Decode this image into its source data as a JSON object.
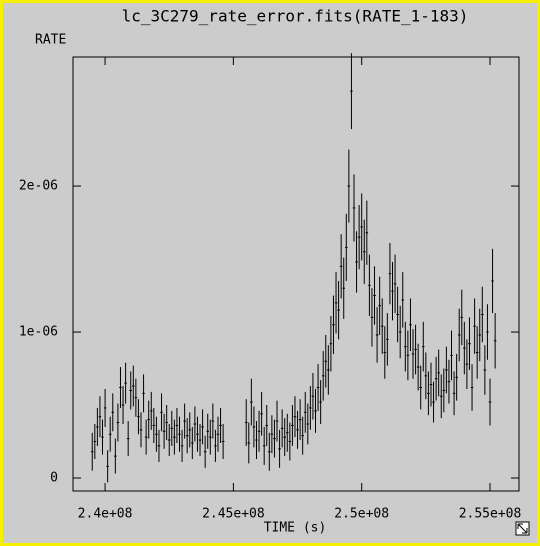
{
  "chart_data": {
    "type": "errorbar",
    "title": "lc_3C279_rate_error.fits(RATE_1-183)",
    "ylabel": "RATE",
    "xlabel": "TIME (s)",
    "color": "#000000",
    "xlim": [
      238750000,
      256130000
    ],
    "ylim": [
      -8.9e-08,
      2.884e-06
    ],
    "xticks": [
      {
        "value": 240000000,
        "label": "2.4e+08"
      },
      {
        "value": 245000000,
        "label": "2.45e+08"
      },
      {
        "value": 250000000,
        "label": "2.5e+08"
      },
      {
        "value": 255000000,
        "label": "2.55e+08"
      }
    ],
    "yticks": [
      0,
      {
        "value": 1e-06,
        "label": "1e-06"
      },
      {
        "value": 2e-06,
        "label": "2e-06"
      }
    ],
    "x_error": 50000,
    "x": [
      239500000,
      239600000,
      239700000,
      239800000,
      239900000,
      240000000,
      240100000,
      240200000,
      240300000,
      240400000,
      240500000,
      240600000,
      240700000,
      240800000,
      240900000,
      241000000,
      241100000,
      241200000,
      241300000,
      241400000,
      241500000,
      241600000,
      241700000,
      241800000,
      241900000,
      242000000,
      242100000,
      242200000,
      242300000,
      242400000,
      242500000,
      242600000,
      242700000,
      242800000,
      242900000,
      243000000,
      243100000,
      243200000,
      243300000,
      243400000,
      243500000,
      243600000,
      243700000,
      243800000,
      243900000,
      244000000,
      244100000,
      244200000,
      244300000,
      244400000,
      244500000,
      244600000,
      245500000,
      245600000,
      245700000,
      245800000,
      245900000,
      246000000,
      246100000,
      246200000,
      246300000,
      246400000,
      246500000,
      246600000,
      246700000,
      246800000,
      246900000,
      247000000,
      247100000,
      247200000,
      247300000,
      247400000,
      247500000,
      247600000,
      247700000,
      247800000,
      247900000,
      248000000,
      248100000,
      248200000,
      248300000,
      248400000,
      248500000,
      248600000,
      248700000,
      248800000,
      248900000,
      249000000,
      249100000,
      249200000,
      249300000,
      249400000,
      249500000,
      249600000,
      249700000,
      249800000,
      249900000,
      250000000,
      250100000,
      250200000,
      250300000,
      250400000,
      250500000,
      250600000,
      250700000,
      250800000,
      250900000,
      251000000,
      251100000,
      251200000,
      251300000,
      251400000,
      251500000,
      251600000,
      251700000,
      251800000,
      251900000,
      252000000,
      252100000,
      252200000,
      252300000,
      252400000,
      252500000,
      252600000,
      252700000,
      252800000,
      252900000,
      253000000,
      253100000,
      253200000,
      253300000,
      253400000,
      253500000,
      253600000,
      253700000,
      253800000,
      253900000,
      254000000,
      254100000,
      254200000,
      254300000,
      254400000,
      254500000,
      254600000,
      254700000,
      254800000,
      254900000,
      255000000,
      255100000,
      255200000
    ],
    "values": [
      1.8e-07,
      2.5e-07,
      3.5e-07,
      4.2e-07,
      2.8e-07,
      4.8e-07,
      8e-08,
      3e-07,
      4.5e-07,
      1.5e-07,
      3.8e-07,
      6.2e-07,
      5e-07,
      6.5e-07,
      2.7e-07,
      6e-07,
      6.3e-07,
      5.5e-07,
      4.2e-07,
      3.3e-07,
      5.8e-07,
      2.8e-07,
      4e-07,
      4.6e-07,
      3.6e-07,
      3e-07,
      2.2e-07,
      4.5e-07,
      3.2e-07,
      3.8e-07,
      2.6e-07,
      3.4e-07,
      2.8e-07,
      3.6e-07,
      3e-07,
      2.2e-07,
      3.9e-07,
      2.9e-07,
      3.3e-07,
      2.4e-07,
      3.7e-07,
      3e-07,
      2.6e-07,
      3.5e-07,
      1.8e-07,
      3.2e-07,
      2.8e-07,
      3.9e-07,
      2.2e-07,
      3e-07,
      3.6e-07,
      2.5e-07,
      3.8e-07,
      2.4e-07,
      5.2e-07,
      3.5e-07,
      2.6e-07,
      3.2e-07,
      4.4e-07,
      2.2e-07,
      3.6e-07,
      1.8e-07,
      3e-07,
      2.7e-07,
      3.9e-07,
      2e-07,
      3.4e-07,
      2.8e-07,
      3.1e-07,
      2.5e-07,
      3.6e-07,
      4.2e-07,
      3.3e-07,
      4e-07,
      2.9e-07,
      4.5e-07,
      3.7e-07,
      4.8e-07,
      5.6e-07,
      4.6e-07,
      6.2e-07,
      5.2e-07,
      7e-07,
      8e-07,
      7.4e-07,
      9.2e-07,
      1.05e-06,
      1.2e-06,
      1.15e-06,
      1.45e-06,
      1.3e-06,
      1.58e-06,
      2e-06,
      2.65e-06,
      1.85e-06,
      1.48e-06,
      1.65e-06,
      1.72e-06,
      1.55e-06,
      1.68e-06,
      1.32e-06,
      1.1e-06,
      1.25e-06,
      9.8e-07,
      1.18e-06,
      1.04e-06,
      8.6e-07,
      9.5e-07,
      1.4e-06,
      1.28e-06,
      1.33e-06,
      1.12e-06,
      1e-06,
      1.22e-06,
      9e-07,
      8.4e-07,
      1.05e-06,
      8.5e-07,
      8.8e-07,
      7.6e-07,
      6.2e-07,
      9e-07,
      7e-07,
      5.8e-07,
      6.4e-07,
      5.2e-07,
      6.8e-07,
      7.2e-07,
      5.6e-07,
      6e-07,
      7.4e-07,
      6.6e-07,
      8.4e-07,
      5.8e-07,
      6.9e-07,
      9.8e-07,
      1.1e-06,
      8.9e-07,
      7.8e-07,
      9.2e-07,
      6.2e-07,
      1.04e-06,
      8.6e-07,
      9.8e-07,
      1.12e-06,
      7.4e-07,
      1e-06,
      5.2e-07,
      1.35e-06,
      9.4e-07
    ],
    "errors": [
      1.3e-07,
      1.2e-07,
      1.3e-07,
      1.4e-07,
      1.2e-07,
      1.3e-07,
      1.1e-07,
      1.2e-07,
      1.3e-07,
      1.2e-07,
      1.3e-07,
      1.4e-07,
      1.3e-07,
      1.4e-07,
      1.2e-07,
      1.3e-07,
      1.4e-07,
      1.3e-07,
      1.2e-07,
      1.2e-07,
      1.3e-07,
      1.2e-07,
      1.3e-07,
      1.3e-07,
      1.2e-07,
      1.2e-07,
      1.1e-07,
      1.3e-07,
      1.2e-07,
      1.2e-07,
      1.1e-07,
      1.2e-07,
      1.2e-07,
      1.2e-07,
      1.2e-07,
      1.1e-07,
      1.2e-07,
      1.2e-07,
      1.2e-07,
      1.1e-07,
      1.2e-07,
      1.2e-07,
      1.1e-07,
      1.2e-07,
      1.1e-07,
      1.2e-07,
      1.2e-07,
      1.2e-07,
      1.1e-07,
      1.2e-07,
      1.2e-07,
      1.2e-07,
      1.6e-07,
      1.4e-07,
      1.6e-07,
      1.4e-07,
      1.3e-07,
      1.4e-07,
      1.5e-07,
      1.3e-07,
      1.4e-07,
      1.3e-07,
      1.3e-07,
      1.3e-07,
      1.4e-07,
      1.3e-07,
      1.3e-07,
      1.3e-07,
      1.3e-07,
      1.3e-07,
      1.4e-07,
      1.4e-07,
      1.3e-07,
      1.4e-07,
      1.3e-07,
      1.4e-07,
      1.4e-07,
      1.5e-07,
      1.6e-07,
      1.5e-07,
      1.6e-07,
      1.5e-07,
      1.7e-07,
      1.8e-07,
      1.7e-07,
      1.9e-07,
      2e-07,
      2.1e-07,
      2e-07,
      2.2e-07,
      2.1e-07,
      2.3e-07,
      2.5e-07,
      2.6e-07,
      2.3e-07,
      2.1e-07,
      2.2e-07,
      2.3e-07,
      2.2e-07,
      2.2e-07,
      2.1e-07,
      2e-07,
      2e-07,
      1.9e-07,
      2e-07,
      1.9e-07,
      1.8e-07,
      1.8e-07,
      2.1e-07,
      2e-07,
      2e-07,
      1.9e-07,
      1.8e-07,
      1.9e-07,
      1.7e-07,
      1.7e-07,
      1.8e-07,
      1.7e-07,
      1.7e-07,
      1.6e-07,
      1.5e-07,
      1.7e-07,
      1.6e-07,
      1.5e-07,
      1.5e-07,
      1.4e-07,
      1.5e-07,
      1.6e-07,
      1.5e-07,
      1.5e-07,
      1.6e-07,
      1.5e-07,
      1.7e-07,
      1.5e-07,
      1.6e-07,
      1.8e-07,
      1.9e-07,
      1.8e-07,
      1.7e-07,
      1.8e-07,
      1.6e-07,
      1.9e-07,
      1.8e-07,
      1.8e-07,
      1.9e-07,
      1.7e-07,
      1.9e-07,
      1.6e-07,
      2.2e-07,
      1.9e-07
    ]
  }
}
